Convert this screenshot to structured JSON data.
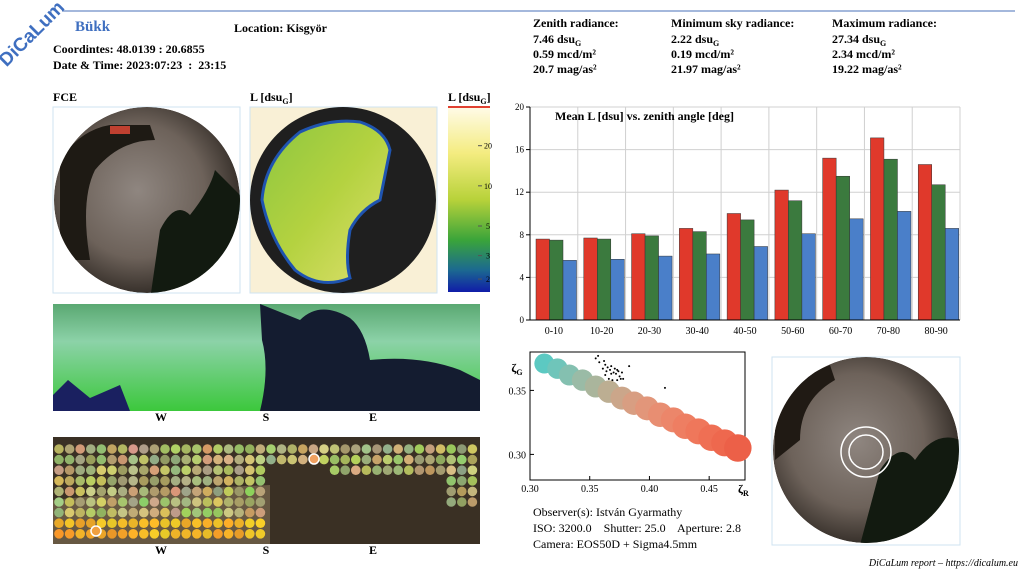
{
  "header": {
    "logo": "DiCaLum",
    "site": "Bükk",
    "location": "Location: Kisgyör",
    "coordinates": "Coordintes: 48.0139 : 20.6855",
    "datetime": "Date & Time: 2023:07:23  :  23:15"
  },
  "radiance": [
    {
      "title": "Zenith radiance:",
      "dsu": {
        "text": "7.46 dsu",
        "sub": "G"
      },
      "mcd": "0.59 mcd/m²",
      "mag": "20.7 mag/as²"
    },
    {
      "title": "Minimum sky radiance:",
      "dsu": {
        "text": "2.22 dsu",
        "sub": "G"
      },
      "mcd": "0.19 mcd/m²",
      "mag": "21.97 mag/as²"
    },
    {
      "title": "Maximum radiance:",
      "dsu": {
        "text": "27.34 dsu",
        "sub": "G"
      },
      "mcd": "2.34 mcd/m²",
      "mag": "19.22 mag/as²"
    }
  ],
  "panels": {
    "fce": "FCE",
    "luminance": {
      "text": "L [dsu",
      "sub": "G",
      "end": "]"
    },
    "colorbar": {
      "label": {
        "text": "L [dsu",
        "sub": "G",
        "end": "]"
      },
      "ticks": [
        2,
        3,
        5,
        10,
        20
      ],
      "lim": [
        1.6,
        39
      ],
      "log": true
    },
    "panorama_directions": [
      "W",
      "S",
      "E"
    ],
    "grid_directions": [
      "W",
      "S",
      "E"
    ]
  },
  "chart_data": [
    {
      "type": "bar",
      "title": "Mean L [dsu] vs. zenith angle [deg]",
      "categories": [
        "0-10",
        "10-20",
        "20-30",
        "30-40",
        "40-50",
        "50-60",
        "60-70",
        "70-80",
        "80-90"
      ],
      "series": [
        {
          "color": "#e0392b",
          "values": [
            7.6,
            7.7,
            8.1,
            8.6,
            10.0,
            12.2,
            15.2,
            17.1,
            14.6
          ]
        },
        {
          "color": "#3b7a3e",
          "values": [
            7.5,
            7.6,
            7.9,
            8.3,
            9.4,
            11.2,
            13.5,
            15.1,
            12.7
          ]
        },
        {
          "color": "#4a7fc9",
          "values": [
            5.6,
            5.7,
            6.0,
            6.2,
            6.9,
            8.1,
            9.5,
            10.2,
            8.6
          ]
        }
      ],
      "ylim": [
        0,
        20
      ],
      "yticks": [
        0,
        4,
        8,
        12,
        16,
        20
      ],
      "grid": true
    },
    {
      "type": "scatter",
      "x_label": {
        "text": "ζ",
        "sub": "R"
      },
      "y_label": {
        "text": "ζ",
        "sub": "G"
      },
      "xlim": [
        0.3,
        0.48
      ],
      "ylim": [
        0.28,
        0.38
      ],
      "xticks": [
        {
          "value": 0.3,
          "label": "0.30"
        },
        0.35,
        {
          "value": 0.4,
          "label": "0.40"
        },
        0.45
      ],
      "yticks": [
        {
          "value": 0.3,
          "label": "0.30"
        },
        0.35
      ],
      "series": [
        {
          "x": [
            0.312,
            0.323,
            0.333,
            0.344,
            0.355,
            0.366,
            0.377,
            0.387,
            0.398,
            0.409,
            0.42,
            0.43,
            0.441,
            0.452,
            0.463,
            0.474
          ],
          "values": [
            0.371,
            0.367,
            0.362,
            0.358,
            0.353,
            0.349,
            0.344,
            0.34,
            0.336,
            0.331,
            0.327,
            0.322,
            0.318,
            0.313,
            0.309,
            0.305
          ],
          "colors": [
            "#5cc9c2",
            "#6fc5ba",
            "#84c0b0",
            "#9abba6",
            "#aab59c",
            "#bcae92",
            "#cba68a",
            "#d89e82",
            "#e2967a",
            "#e88e72",
            "#ec866a",
            "#ee7e62",
            "#ef775b",
            "#ef6f54",
            "#ee684e",
            "#ec6048"
          ]
        },
        {
          "color": "#000000",
          "x": [
            0.355,
            0.358,
            0.362,
            0.363,
            0.365,
            0.367,
            0.368,
            0.37,
            0.372,
            0.373,
            0.375,
            0.377,
            0.378,
            0.363,
            0.366,
            0.368,
            0.369,
            0.373,
            0.374,
            0.371,
            0.383,
            0.361,
            0.364,
            0.376,
            0.413,
            0.357
          ],
          "values": [
            0.375,
            0.372,
            0.373,
            0.37,
            0.368,
            0.366,
            0.369,
            0.364,
            0.363,
            0.366,
            0.361,
            0.364,
            0.359,
            0.362,
            0.359,
            0.363,
            0.358,
            0.358,
            0.365,
            0.367,
            0.369,
            0.367,
            0.365,
            0.359,
            0.352,
            0.377
          ]
        }
      ]
    }
  ],
  "observation": {
    "observer": "Observer(s): István Gyarmathy",
    "settings": "ISO: 3200.0    Shutter: 25.0    Aperture: 2.8",
    "camera": "Camera: EOS50D + Sigma4.5mm"
  },
  "footer": "DiCaLum report – https://dicalum.eu"
}
